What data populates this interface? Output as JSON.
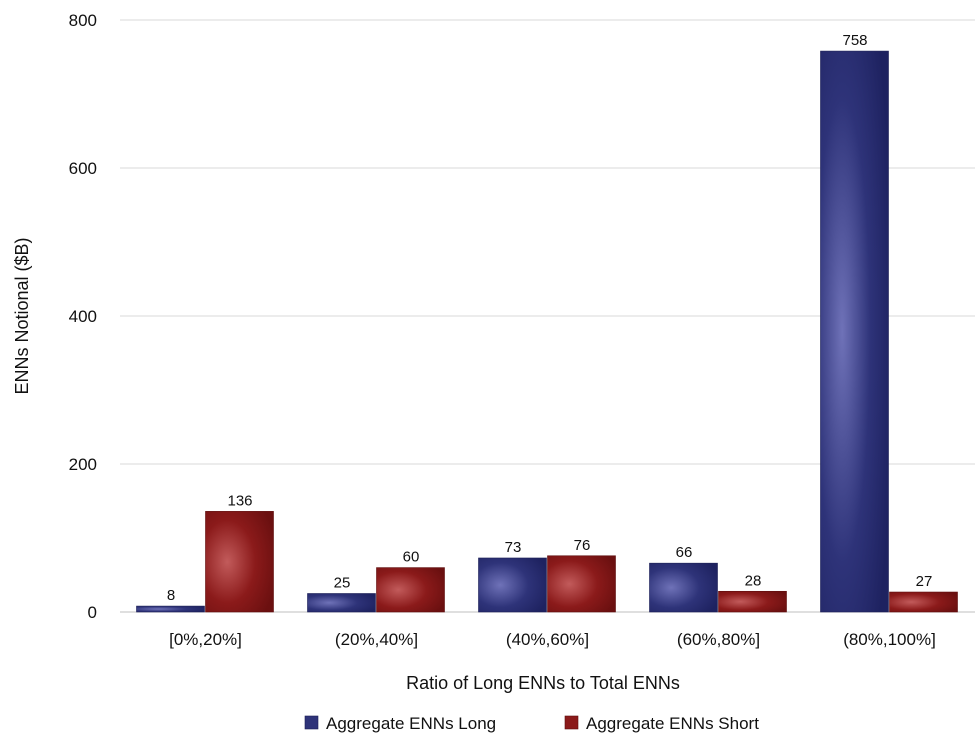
{
  "chart_data": {
    "type": "bar",
    "categories": [
      "[0%,20%]",
      "(20%,40%]",
      "(40%,60%]",
      "(60%,80%]",
      "(80%,100%]"
    ],
    "series": [
      {
        "name": "Aggregate ENNs Long",
        "values": [
          8,
          25,
          73,
          66,
          758
        ],
        "color": "#2e3379"
      },
      {
        "name": "Aggregate ENNs Short",
        "values": [
          136,
          60,
          76,
          28,
          27
        ],
        "color": "#8b1a1a"
      }
    ],
    "xlabel": "Ratio of Long ENNs to Total ENNs",
    "ylabel": "ENNs Notional ($B)",
    "ylim": [
      0,
      800
    ],
    "yticks": [
      0,
      200,
      400,
      600,
      800
    ],
    "grid": true,
    "legend_position": "bottom"
  }
}
